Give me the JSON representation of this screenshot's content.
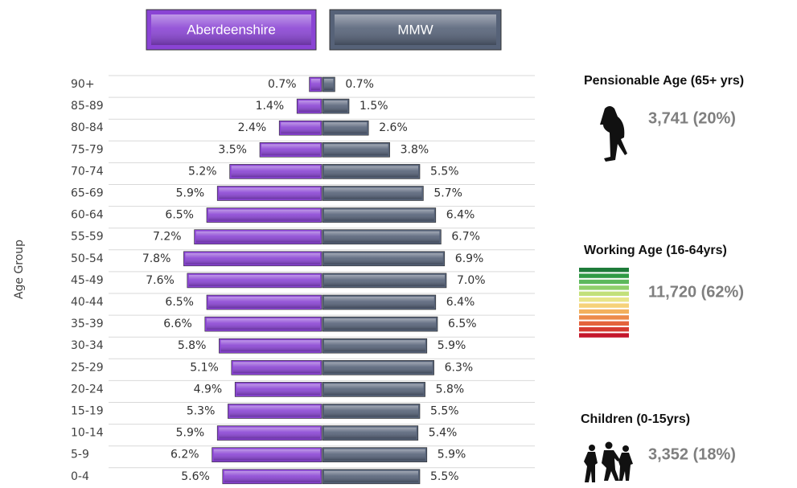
{
  "chart_data": {
    "type": "pyramid",
    "y_label": "Age Group",
    "categories": [
      "90+",
      "85-89",
      "80-84",
      "75-79",
      "70-74",
      "65-69",
      "60-64",
      "55-59",
      "50-54",
      "45-49",
      "40-44",
      "35-39",
      "30-34",
      "25-29",
      "20-24",
      "15-19",
      "10-14",
      "5-9",
      "0-4"
    ],
    "series": [
      {
        "name": "Aberdeenshire",
        "color": "#8a44d4",
        "values": [
          0.7,
          1.4,
          2.4,
          3.5,
          5.2,
          5.9,
          6.5,
          7.2,
          7.8,
          7.6,
          6.5,
          6.6,
          5.8,
          5.1,
          4.9,
          5.3,
          5.9,
          6.2,
          5.6
        ],
        "value_labels": [
          "0.7%",
          "1.4%",
          "2.4%",
          "3.5%",
          "5.2%",
          "5.9%",
          "6.5%",
          "7.2%",
          "7.8%",
          "7.6%",
          "6.5%",
          "6.6%",
          "5.8%",
          "5.1%",
          "4.9%",
          "5.3%",
          "5.9%",
          "6.2%",
          "5.6%"
        ]
      },
      {
        "name": "MMW",
        "color": "#566278",
        "values": [
          0.7,
          1.5,
          2.6,
          3.8,
          5.5,
          5.7,
          6.4,
          6.7,
          6.9,
          7.0,
          6.4,
          6.5,
          5.9,
          6.3,
          5.8,
          5.5,
          5.4,
          5.9,
          5.5
        ],
        "value_labels": [
          "0.7%",
          "1.5%",
          "2.6%",
          "3.8%",
          "5.5%",
          "5.7%",
          "6.4%",
          "6.7%",
          "6.9%",
          "7.0%",
          "6.4%",
          "6.5%",
          "5.9%",
          "6.3%",
          "5.8%",
          "5.5%",
          "5.4%",
          "5.9%",
          "5.5%"
        ]
      }
    ],
    "grid": true
  },
  "panels": [
    {
      "title": "Pensionable Age (65+ yrs)",
      "value": "3,741 (20%)"
    },
    {
      "title": "Working Age (16-64yrs)",
      "value": "11,720 (62%)"
    },
    {
      "title": "Children (0-15yrs)",
      "value": "3,352 (18%)"
    }
  ]
}
